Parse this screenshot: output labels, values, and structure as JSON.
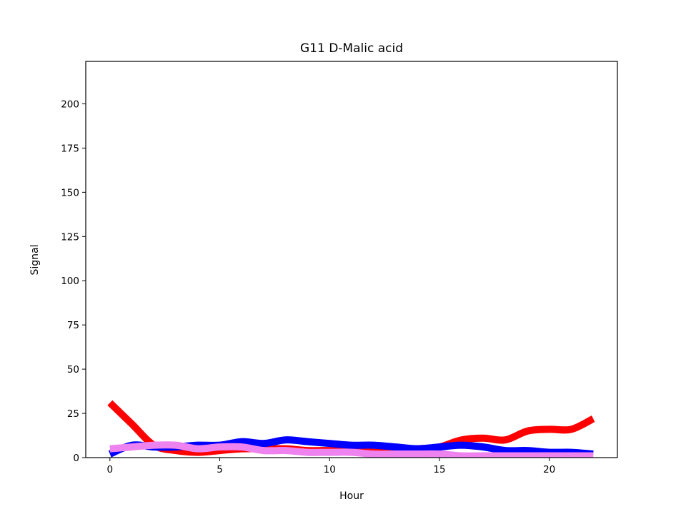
{
  "chart_data": {
    "type": "line",
    "title": "G11 D-Malic acid",
    "xlabel": "Hour",
    "ylabel": "Signal",
    "xlim": [
      -1.1,
      23.1
    ],
    "ylim": [
      0,
      224
    ],
    "xticks": [
      0,
      5,
      10,
      15,
      20
    ],
    "yticks": [
      0,
      25,
      50,
      75,
      100,
      125,
      150,
      175,
      200
    ],
    "grid": false,
    "legend": "none",
    "series": [
      {
        "color": "#ff0000",
        "x": [
          0,
          1,
          2,
          3,
          4,
          5,
          6,
          7,
          8,
          9,
          10,
          11,
          12,
          13,
          14,
          15,
          16,
          17,
          18,
          19,
          20,
          21,
          22
        ],
        "values": [
          31,
          19,
          7,
          4,
          3,
          4,
          5,
          5,
          5,
          4,
          4,
          4,
          3,
          4,
          5,
          6,
          10,
          11,
          10,
          15,
          16,
          16,
          22
        ]
      },
      {
        "color": "#0000ff",
        "x": [
          0,
          1,
          2,
          3,
          4,
          5,
          6,
          7,
          8,
          9,
          10,
          11,
          12,
          13,
          14,
          15,
          16,
          17,
          18,
          19,
          20,
          21,
          22
        ],
        "values": [
          2,
          7,
          6,
          6,
          7,
          7,
          9,
          8,
          10,
          9,
          8,
          7,
          7,
          6,
          5,
          6,
          7,
          6,
          4,
          4,
          3,
          3,
          2
        ]
      },
      {
        "color": "#ee82ee",
        "x": [
          0,
          1,
          2,
          3,
          4,
          5,
          6,
          7,
          8,
          9,
          10,
          11,
          12,
          13,
          14,
          15,
          16,
          17,
          18,
          19,
          20,
          21,
          22
        ],
        "values": [
          5,
          6,
          7,
          7,
          5,
          6,
          6,
          4,
          4,
          3,
          3,
          3,
          2,
          2,
          2,
          2,
          1,
          1,
          1,
          1,
          1,
          1,
          1
        ]
      }
    ]
  }
}
